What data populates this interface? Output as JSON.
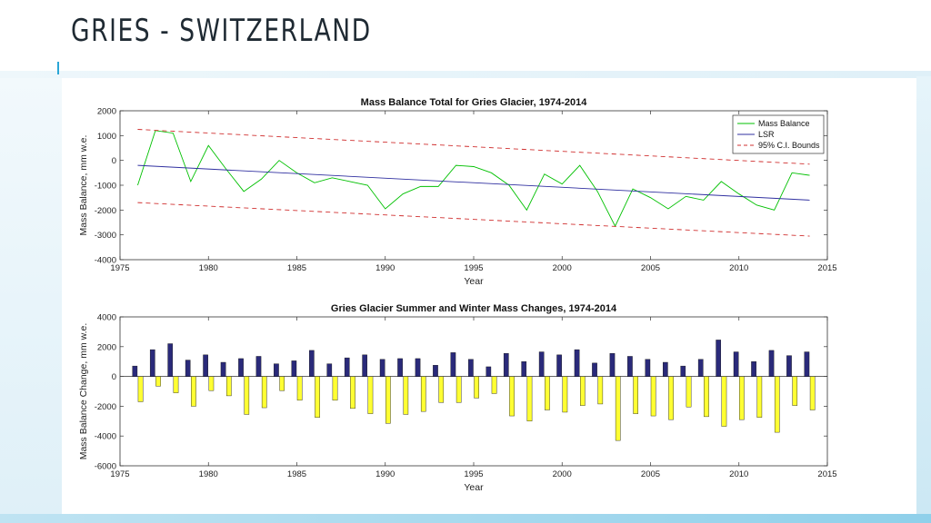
{
  "slide": {
    "title": "GRIES - SWITZERLAND",
    "colors": {
      "title": "#1f2a33",
      "accent": "#2aa6d6",
      "band": "#8fd0ea"
    }
  },
  "chart_data": [
    {
      "type": "line",
      "title": "Mass Balance Total for Gries Glacier, 1974-2014",
      "xlabel": "Year",
      "ylabel": "Mass Balance, mm w.e.",
      "xlim": [
        1975,
        2015
      ],
      "ylim": [
        -4000,
        2000
      ],
      "xticks": [
        1975,
        1980,
        1985,
        1990,
        1995,
        2000,
        2005,
        2010,
        2015
      ],
      "yticks": [
        2000,
        1000,
        0,
        -1000,
        -2000,
        -3000,
        -4000
      ],
      "legend": {
        "placement": "top-right",
        "entries": [
          "Mass Balance",
          "LSR",
          "95% C.I. Bounds"
        ]
      },
      "series": [
        {
          "name": "Mass Balance",
          "color": "#00c000",
          "style": "solid",
          "x": [
            1976,
            1977,
            1978,
            1979,
            1980,
            1981,
            1982,
            1983,
            1984,
            1985,
            1986,
            1987,
            1988,
            1989,
            1990,
            1991,
            1992,
            1993,
            1994,
            1995,
            1996,
            1997,
            1998,
            1999,
            2000,
            2001,
            2002,
            2003,
            2004,
            2005,
            2006,
            2007,
            2008,
            2009,
            2010,
            2011,
            2012,
            2013,
            2014
          ],
          "y": [
            -1000,
            1200,
            1100,
            -850,
            600,
            -350,
            -1250,
            -750,
            0,
            -500,
            -900,
            -700,
            -850,
            -1000,
            -1950,
            -1350,
            -1050,
            -1050,
            -200,
            -250,
            -500,
            -1000,
            -2000,
            -550,
            -950,
            -200,
            -1250,
            -2650,
            -1150,
            -1500,
            -1950,
            -1450,
            -1600,
            -850,
            -1350,
            -1800,
            -2000,
            -500,
            -600
          ]
        },
        {
          "name": "LSR",
          "color": "#3030a0",
          "style": "solid",
          "x": [
            1976,
            2014
          ],
          "y": [
            -200,
            -1600
          ]
        },
        {
          "name": "95% C.I. Bounds",
          "color": "#d03030",
          "style": "dashed",
          "x": [
            1976,
            2014
          ],
          "y": [
            1250,
            -150
          ]
        },
        {
          "name": "",
          "color": "#d03030",
          "style": "dashed",
          "x": [
            1976,
            2014
          ],
          "y": [
            -1700,
            -3050
          ]
        }
      ]
    },
    {
      "type": "bar",
      "title": "Gries Glacier Summer and Winter Mass Changes, 1974-2014",
      "xlabel": "Year",
      "ylabel": "Mass Balance Change, mm w.e.",
      "xlim": [
        1975,
        2015
      ],
      "ylim": [
        -6000,
        4000
      ],
      "xticks": [
        1975,
        1980,
        1985,
        1990,
        1995,
        2000,
        2005,
        2010,
        2015
      ],
      "yticks": [
        4000,
        2000,
        0,
        -2000,
        -4000,
        -6000
      ],
      "x": [
        1976,
        1977,
        1978,
        1979,
        1980,
        1981,
        1982,
        1983,
        1984,
        1985,
        1986,
        1987,
        1988,
        1989,
        1990,
        1991,
        1992,
        1993,
        1994,
        1995,
        1996,
        1997,
        1998,
        1999,
        2000,
        2001,
        2002,
        2003,
        2004,
        2005,
        2006,
        2007,
        2008,
        2009,
        2010,
        2011,
        2012,
        2013,
        2014
      ],
      "series": [
        {
          "color": "#2a2a7a",
          "values": [
            700,
            1800,
            2200,
            1100,
            1450,
            950,
            1200,
            1350,
            850,
            1050,
            1750,
            850,
            1250,
            1450,
            1150,
            1200,
            1200,
            750,
            1600,
            1150,
            650,
            1550,
            1000,
            1650,
            1450,
            1800,
            900,
            1550,
            1350,
            1150,
            950,
            700,
            1150,
            2450,
            1650,
            1000,
            1750,
            1400,
            1650
          ]
        },
        {
          "color": "#ffff33",
          "values": [
            -1700,
            -650,
            -1100,
            -2000,
            -950,
            -1300,
            -2550,
            -2100,
            -950,
            -1600,
            -2750,
            -1600,
            -2150,
            -2500,
            -3150,
            -2550,
            -2350,
            -1750,
            -1750,
            -1450,
            -1150,
            -2650,
            -3000,
            -2250,
            -2400,
            -1950,
            -1850,
            -4300,
            -2500,
            -2650,
            -2900,
            -2050,
            -2700,
            -3350,
            -2900,
            -2750,
            -3750,
            -1950,
            -2250
          ]
        }
      ]
    }
  ]
}
